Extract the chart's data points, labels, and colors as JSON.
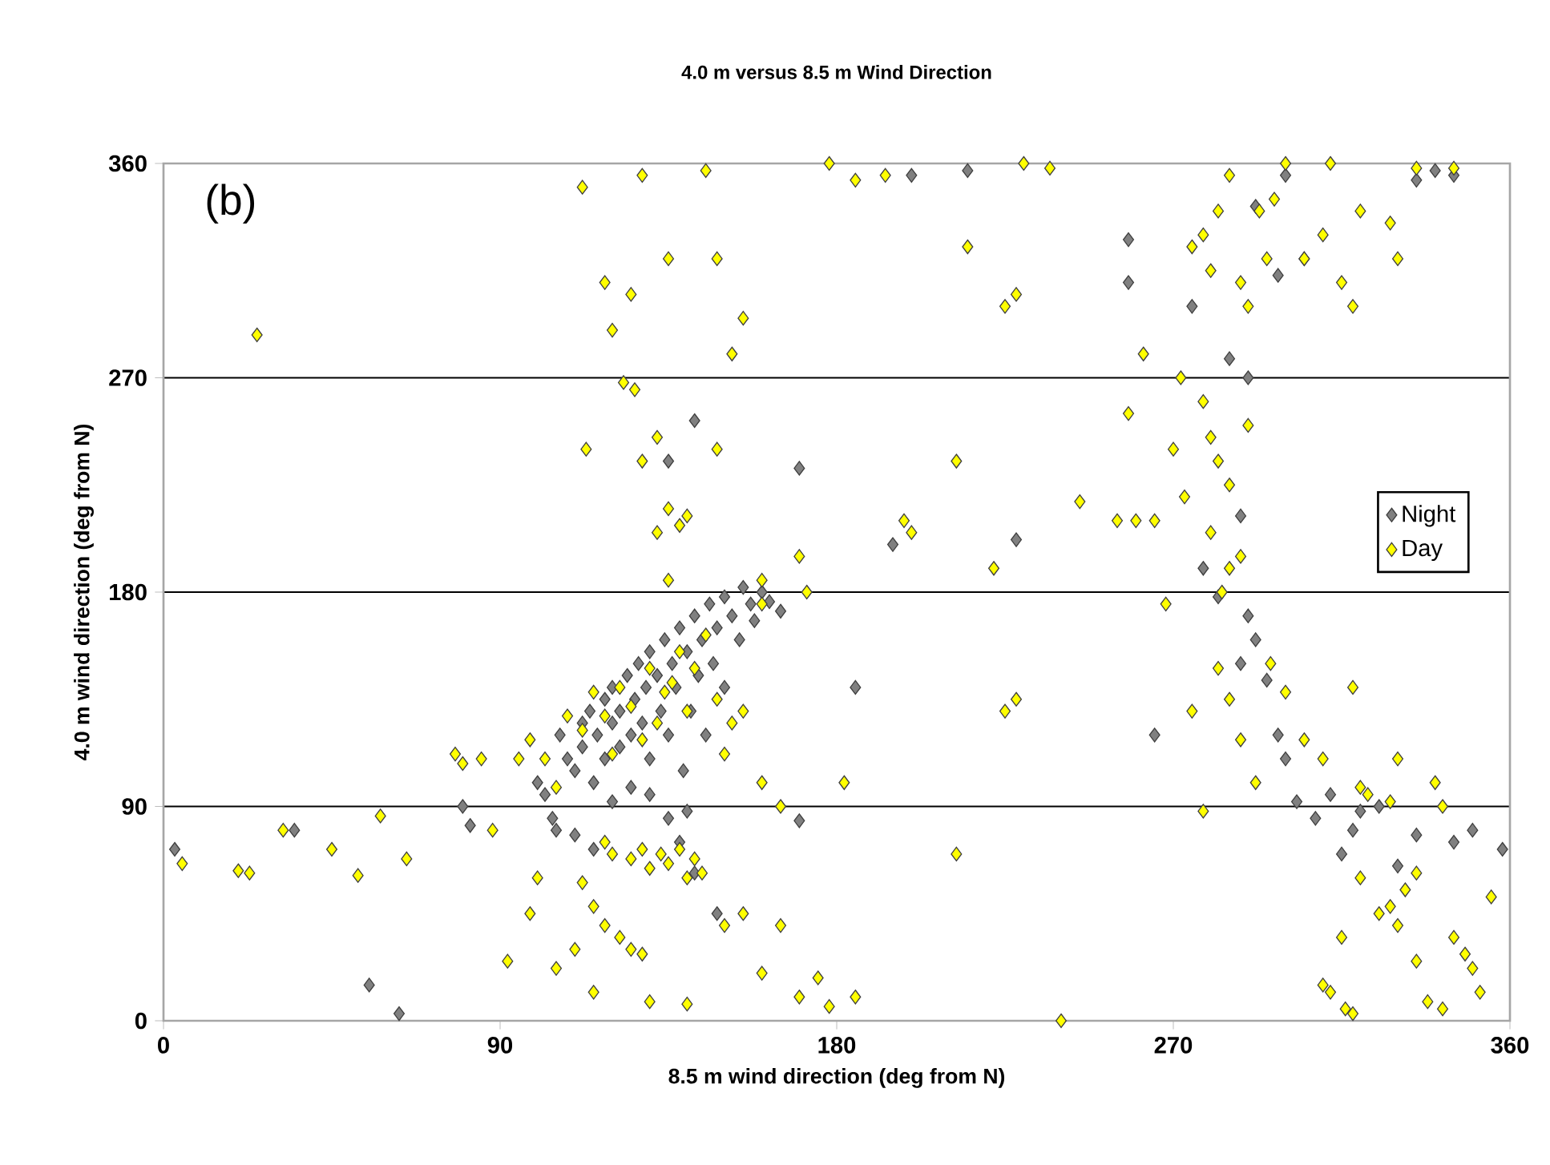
{
  "chart_data": {
    "type": "scatter",
    "title": "4.0 m versus 8.5 m Wind Direction",
    "xlabel": "8.5 m wind direction (deg from N)",
    "ylabel": "4.0 m wind direction (deg from N)",
    "annotations": [
      "(b)"
    ],
    "xlim": [
      0,
      360
    ],
    "ylim": [
      0,
      360
    ],
    "xticks": [
      0,
      90,
      180,
      270,
      360
    ],
    "yticks": [
      0,
      90,
      180,
      270,
      360
    ],
    "grid": "y",
    "legend": "right",
    "marker": "diamond",
    "series": [
      {
        "name": "Night",
        "color": "#808080",
        "x": [
          3,
          55,
          63,
          35,
          80,
          82,
          100,
          102,
          104,
          105,
          106,
          108,
          110,
          112,
          112,
          114,
          115,
          116,
          118,
          118,
          120,
          120,
          122,
          122,
          124,
          125,
          126,
          127,
          128,
          129,
          130,
          130,
          132,
          133,
          134,
          135,
          136,
          137,
          138,
          139,
          140,
          141,
          142,
          143,
          144,
          145,
          146,
          147,
          148,
          150,
          150,
          152,
          154,
          155,
          157,
          158,
          160,
          162,
          165,
          130,
          135,
          140,
          125,
          120,
          110,
          115,
          138,
          142,
          148,
          135,
          142,
          170,
          170,
          185,
          195,
          200,
          215,
          228,
          258,
          258,
          265,
          278,
          282,
          288,
          290,
          292,
          295,
          298,
          300,
          303,
          308,
          312,
          315,
          318,
          320,
          325,
          330,
          335,
          345,
          358,
          350,
          345,
          335,
          340,
          300,
          298,
          305,
          292,
          285,
          290,
          275,
          288
        ],
        "values": [
          72,
          15,
          3,
          80,
          90,
          82,
          100,
          95,
          85,
          80,
          120,
          110,
          105,
          115,
          125,
          130,
          100,
          120,
          135,
          110,
          125,
          140,
          130,
          115,
          145,
          120,
          135,
          150,
          125,
          140,
          155,
          110,
          145,
          130,
          160,
          120,
          150,
          140,
          165,
          105,
          155,
          130,
          170,
          145,
          160,
          120,
          175,
          150,
          165,
          178,
          140,
          170,
          160,
          182,
          175,
          168,
          180,
          176,
          172,
          95,
          85,
          88,
          98,
          92,
          78,
          72,
          75,
          62,
          45,
          235,
          252,
          232,
          84,
          140,
          200,
          355,
          357,
          202,
          310,
          328,
          120,
          190,
          178,
          150,
          170,
          160,
          143,
          120,
          110,
          92,
          85,
          95,
          70,
          80,
          88,
          90,
          65,
          78,
          75,
          72,
          80,
          355,
          353,
          357,
          355,
          313,
          320,
          342,
          278,
          270,
          300,
          212
        ]
      },
      {
        "name": "Day",
        "color": "#ffff00",
        "x": [
          5,
          20,
          23,
          32,
          45,
          52,
          58,
          65,
          78,
          80,
          85,
          88,
          25,
          95,
          98,
          102,
          105,
          108,
          112,
          115,
          118,
          120,
          122,
          125,
          128,
          130,
          132,
          134,
          136,
          138,
          140,
          142,
          145,
          148,
          150,
          152,
          155,
          118,
          120,
          125,
          128,
          130,
          133,
          135,
          138,
          140,
          142,
          144,
          112,
          115,
          118,
          122,
          125,
          128,
          110,
          105,
          98,
          92,
          100,
          115,
          130,
          140,
          150,
          155,
          160,
          165,
          170,
          175,
          178,
          185,
          182,
          165,
          160,
          112,
          128,
          145,
          118,
          120,
          125,
          123,
          126,
          113,
          128,
          132,
          135,
          148,
          152,
          155,
          148,
          135,
          140,
          132,
          135,
          138,
          160,
          170,
          178,
          185,
          193,
          160,
          172,
          200,
          198,
          212,
          215,
          222,
          225,
          228,
          212,
          225,
          228,
          230,
          237,
          240,
          245,
          255,
          260,
          258,
          262,
          265,
          268,
          270,
          272,
          273,
          275,
          278,
          280,
          282,
          285,
          288,
          290,
          293,
          295,
          297,
          300,
          305,
          310,
          315,
          318,
          312,
          320,
          328,
          330,
          335,
          345,
          278,
          280,
          282,
          285,
          290,
          288,
          285,
          280,
          283,
          288,
          285,
          282,
          275,
          278,
          292,
          296,
          300,
          305,
          310,
          318,
          320,
          322,
          328,
          330,
          340,
          342,
          320,
          315,
          310,
          312,
          316,
          325,
          330,
          335,
          338,
          342,
          345,
          348,
          350,
          352,
          355,
          328,
          332,
          335,
          318
        ],
        "values": [
          66,
          63,
          62,
          80,
          72,
          61,
          86,
          68,
          112,
          108,
          110,
          80,
          288,
          110,
          118,
          110,
          98,
          128,
          122,
          138,
          128,
          112,
          140,
          132,
          118,
          148,
          125,
          138,
          142,
          155,
          130,
          148,
          162,
          135,
          112,
          125,
          130,
          75,
          70,
          68,
          72,
          64,
          70,
          66,
          72,
          60,
          68,
          62,
          58,
          48,
          40,
          35,
          30,
          28,
          30,
          22,
          45,
          25,
          60,
          12,
          8,
          7,
          40,
          45,
          20,
          40,
          10,
          18,
          6,
          10,
          100,
          90,
          100,
          350,
          355,
          357,
          310,
          290,
          305,
          268,
          265,
          240,
          235,
          245,
          320,
          320,
          280,
          295,
          240,
          215,
          212,
          205,
          185,
          208,
          185,
          195,
          360,
          353,
          355,
          175,
          180,
          205,
          210,
          235,
          325,
          190,
          130,
          135,
          70,
          300,
          305,
          360,
          358,
          0,
          218,
          210,
          210,
          255,
          280,
          210,
          175,
          240,
          270,
          220,
          325,
          330,
          315,
          340,
          355,
          310,
          300,
          340,
          320,
          345,
          360,
          320,
          330,
          310,
          300,
          360,
          340,
          335,
          320,
          358,
          358,
          260,
          245,
          235,
          225,
          250,
          195,
          190,
          205,
          180,
          118,
          135,
          148,
          130,
          88,
          100,
          150,
          138,
          118,
          110,
          140,
          98,
          95,
          92,
          110,
          100,
          90,
          60,
          35,
          15,
          12,
          5,
          45,
          40,
          25,
          8,
          5,
          35,
          28,
          22,
          12,
          52,
          48,
          55,
          62,
          3
        ]
      }
    ]
  }
}
